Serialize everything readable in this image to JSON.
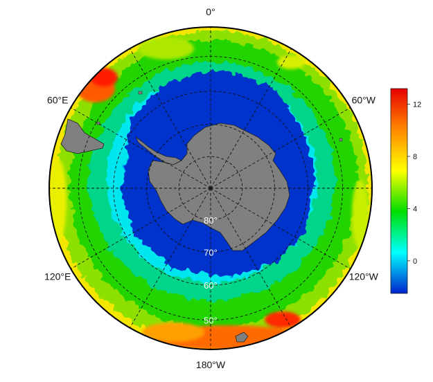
{
  "map": {
    "projection": "south-polar-stereographic",
    "longitude_labels": [
      {
        "lon": 0,
        "text": "0°"
      },
      {
        "lon": 60,
        "text": "60°E"
      },
      {
        "lon": 120,
        "text": "120°E"
      },
      {
        "lon": 180,
        "text": "180°W"
      },
      {
        "lon": -120,
        "text": "120°W"
      },
      {
        "lon": -60,
        "text": "60°W"
      }
    ],
    "latitude_labels": [
      {
        "lat": -80,
        "text": "80°"
      },
      {
        "lat": -70,
        "text": "70°"
      },
      {
        "lat": -60,
        "text": "60°"
      },
      {
        "lat": -50,
        "text": "50°"
      }
    ],
    "graticule_latitudes": [
      -80,
      -70,
      -60,
      -50
    ],
    "graticule_longitudes": [
      0,
      30,
      60,
      90,
      120,
      150,
      180,
      210,
      240,
      270,
      300,
      330
    ],
    "boundary_latitude": -42,
    "land_color": "#808080",
    "coast_color": "#222222",
    "graticule_color": "#111111"
  },
  "colorbar": {
    "ticks": [
      {
        "value": 0,
        "text": "0"
      },
      {
        "value": 4,
        "text": "4"
      },
      {
        "value": 8,
        "text": "8"
      },
      {
        "value": 12,
        "text": "12"
      }
    ],
    "min": -2.5,
    "max": 13.2,
    "colors": [
      "#0022cc",
      "#00ffff",
      "#00dd00",
      "#ffff00",
      "#ff8800",
      "#e60000"
    ]
  }
}
